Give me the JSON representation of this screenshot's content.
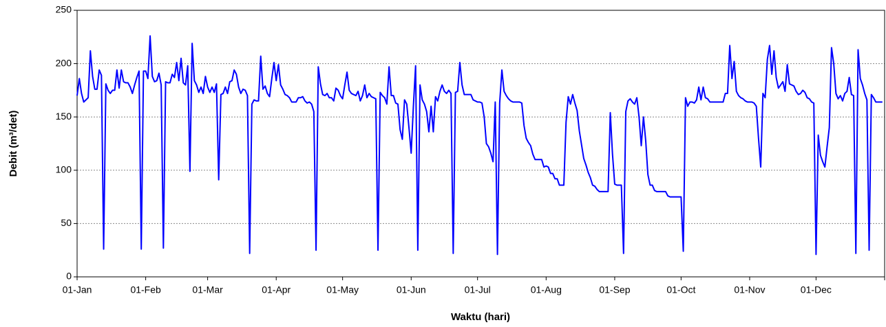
{
  "chart_data": {
    "type": "line",
    "xlabel": "Waktu (hari)",
    "ylabel": "Debit (m³/det)",
    "categories": [
      "01-Jan",
      null,
      null,
      null,
      null,
      null,
      null,
      null,
      null,
      null,
      null,
      null,
      null,
      null,
      null,
      null,
      null,
      null,
      null,
      null,
      null,
      null,
      null,
      null,
      null,
      null,
      null,
      null,
      null,
      null,
      null,
      "01-Feb",
      null,
      null,
      null,
      null,
      null,
      null,
      null,
      null,
      null,
      null,
      null,
      null,
      null,
      null,
      null,
      null,
      null,
      null,
      null,
      null,
      null,
      null,
      null,
      null,
      null,
      null,
      null,
      "01-Mar",
      null,
      null,
      null,
      null,
      null,
      null,
      null,
      null,
      null,
      null,
      null,
      null,
      null,
      null,
      null,
      null,
      null,
      null,
      null,
      null,
      null,
      null,
      null,
      null,
      null,
      null,
      null,
      null,
      null,
      null,
      "01-Apr",
      null,
      null,
      null,
      null,
      null,
      null,
      null,
      null,
      null,
      null,
      null,
      null,
      null,
      null,
      null,
      null,
      null,
      null,
      null,
      null,
      null,
      null,
      null,
      null,
      null,
      null,
      null,
      null,
      null,
      "01-May",
      null,
      null,
      null,
      null,
      null,
      null,
      null,
      null,
      null,
      null,
      null,
      null,
      null,
      null,
      null,
      null,
      null,
      null,
      null,
      null,
      null,
      null,
      null,
      null,
      null,
      null,
      null,
      null,
      null,
      null,
      "01-Jun",
      null,
      null,
      null,
      null,
      null,
      null,
      null,
      null,
      null,
      null,
      null,
      null,
      null,
      null,
      null,
      null,
      null,
      null,
      null,
      null,
      null,
      null,
      null,
      null,
      null,
      null,
      null,
      null,
      null,
      "01-Jul",
      null,
      null,
      null,
      null,
      null,
      null,
      null,
      null,
      null,
      null,
      null,
      null,
      null,
      null,
      null,
      null,
      null,
      null,
      null,
      null,
      null,
      null,
      null,
      null,
      null,
      null,
      null,
      null,
      null,
      null,
      "01-Aug",
      null,
      null,
      null,
      null,
      null,
      null,
      null,
      null,
      null,
      null,
      null,
      null,
      null,
      null,
      null,
      null,
      null,
      null,
      null,
      null,
      null,
      null,
      null,
      null,
      null,
      null,
      null,
      null,
      null,
      null,
      "01-Sep",
      null,
      null,
      null,
      null,
      null,
      null,
      null,
      null,
      null,
      null,
      null,
      null,
      null,
      null,
      null,
      null,
      null,
      null,
      null,
      null,
      null,
      null,
      null,
      null,
      null,
      null,
      null,
      null,
      null,
      "01-Oct",
      null,
      null,
      null,
      null,
      null,
      null,
      null,
      null,
      null,
      null,
      null,
      null,
      null,
      null,
      null,
      null,
      null,
      null,
      null,
      null,
      null,
      null,
      null,
      null,
      null,
      null,
      null,
      null,
      null,
      null,
      "01-Nov",
      null,
      null,
      null,
      null,
      null,
      null,
      null,
      null,
      null,
      null,
      null,
      null,
      null,
      null,
      null,
      null,
      null,
      null,
      null,
      null,
      null,
      null,
      null,
      null,
      null,
      null,
      null,
      null,
      null,
      "01-Dec",
      null,
      null,
      null,
      null,
      null,
      null,
      null,
      null,
      null,
      null,
      null,
      null,
      null,
      null,
      null,
      null,
      null,
      null,
      null,
      null,
      null,
      null,
      null,
      null,
      null,
      null,
      null,
      null,
      null,
      null
    ],
    "series": [
      {
        "name": "Debit",
        "color": "#0000ff",
        "values": [
          170,
          186,
          172,
          164,
          166,
          168,
          212,
          188,
          176,
          176,
          194,
          189,
          26,
          181,
          175,
          172,
          175,
          175,
          194,
          177,
          194,
          183,
          182,
          182,
          178,
          172,
          180,
          187,
          193,
          26,
          193,
          193,
          186,
          226,
          188,
          183,
          184,
          191,
          180,
          27,
          183,
          182,
          182,
          190,
          187,
          201,
          184,
          205,
          182,
          180,
          198,
          99,
          219,
          184,
          180,
          173,
          178,
          172,
          188,
          178,
          173,
          178,
          173,
          181,
          91,
          171,
          172,
          178,
          172,
          183,
          184,
          194,
          190,
          178,
          172,
          176,
          175,
          170,
          22,
          162,
          166,
          165,
          165,
          207,
          176,
          179,
          172,
          169,
          186,
          201,
          184,
          199,
          180,
          176,
          171,
          170,
          168,
          164,
          164,
          164,
          168,
          168,
          169,
          165,
          163,
          164,
          162,
          155,
          25,
          197,
          181,
          171,
          170,
          172,
          168,
          168,
          165,
          177,
          175,
          170,
          167,
          180,
          192,
          175,
          172,
          171,
          170,
          174,
          165,
          170,
          180,
          168,
          172,
          169,
          168,
          167,
          25,
          173,
          170,
          168,
          162,
          197,
          170,
          170,
          163,
          162,
          138,
          129,
          166,
          162,
          140,
          116,
          160,
          198,
          25,
          180,
          166,
          162,
          155,
          136,
          160,
          136,
          169,
          165,
          174,
          180,
          174,
          172,
          175,
          172,
          22,
          173,
          174,
          201,
          180,
          171,
          171,
          171,
          171,
          166,
          165,
          164,
          164,
          163,
          150,
          125,
          122,
          116,
          108,
          164,
          21,
          163,
          194,
          174,
          170,
          167,
          165,
          164,
          164,
          164,
          164,
          163,
          142,
          130,
          126,
          123,
          115,
          110,
          110,
          110,
          110,
          103,
          104,
          103,
          97,
          97,
          92,
          92,
          86,
          86,
          86,
          145,
          169,
          162,
          171,
          163,
          156,
          137,
          124,
          111,
          105,
          98,
          93,
          86,
          85,
          82,
          80,
          80,
          80,
          80,
          80,
          154,
          115,
          87,
          86,
          86,
          86,
          22,
          155,
          165,
          167,
          164,
          162,
          168,
          150,
          123,
          150,
          128,
          96,
          86,
          86,
          81,
          80,
          80,
          80,
          80,
          80,
          76,
          75,
          75,
          75,
          75,
          75,
          75,
          24,
          168,
          160,
          164,
          164,
          163,
          166,
          178,
          166,
          178,
          168,
          167,
          164,
          164,
          164,
          164,
          164,
          164,
          164,
          172,
          172,
          217,
          186,
          202,
          174,
          170,
          168,
          167,
          165,
          164,
          164,
          164,
          163,
          160,
          130,
          103,
          172,
          168,
          204,
          217,
          190,
          212,
          187,
          177,
          180,
          183,
          174,
          199,
          181,
          180,
          179,
          174,
          171,
          172,
          175,
          173,
          168,
          167,
          164,
          163,
          21,
          133,
          114,
          108,
          103,
          122,
          140,
          215,
          200,
          172,
          167,
          170,
          165,
          172,
          174,
          187,
          171,
          170,
          22,
          213,
          186,
          180,
          172,
          166,
          25,
          171,
          168,
          164,
          164,
          164,
          164
        ]
      }
    ],
    "ylim": [
      0,
      250
    ],
    "yticks": [
      0,
      50,
      100,
      150,
      200,
      250
    ],
    "grid": true
  }
}
